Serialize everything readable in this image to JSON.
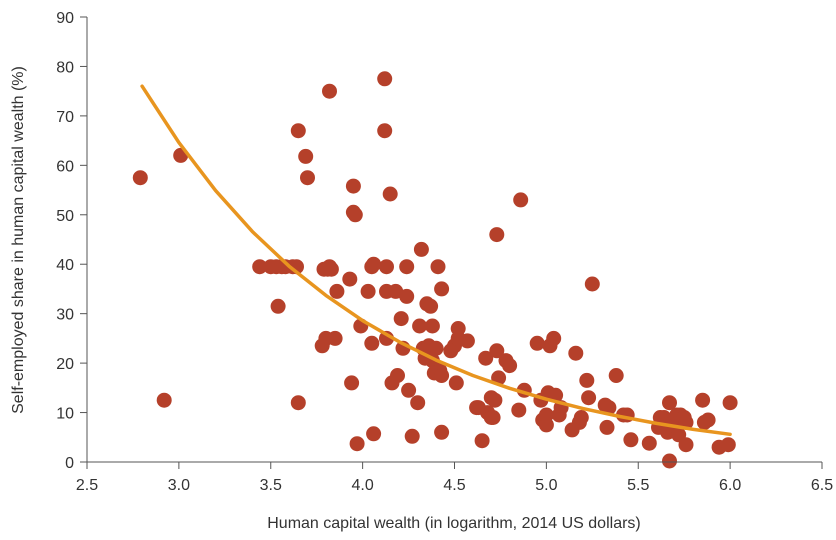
{
  "chart_data": {
    "type": "scatter",
    "xlabel": "Human capital wealth (in logarithm, 2014 US dollars)",
    "ylabel": "Self-employed share in human capital wealth (%)",
    "xlim": [
      2.5,
      6.5
    ],
    "ylim": [
      0,
      90
    ],
    "x_ticks": [
      2.5,
      3.0,
      3.5,
      4.0,
      4.5,
      5.0,
      5.5,
      6.0,
      6.5
    ],
    "x_tick_labels": [
      "2.5",
      "3.0",
      "3.5",
      "4.0",
      "4.5",
      "5.0",
      "5.5",
      "6.0",
      "6.5"
    ],
    "y_ticks": [
      0,
      10,
      20,
      30,
      40,
      50,
      60,
      70,
      80,
      90
    ],
    "y_tick_labels": [
      "0",
      "10",
      "20",
      "30",
      "40",
      "50",
      "60",
      "70",
      "80",
      "90"
    ],
    "grid": false,
    "point_color": "#b5402a",
    "trend_color": "#e8951f",
    "trend": {
      "type": "exponential",
      "x": [
        2.8,
        3.0,
        3.2,
        3.4,
        3.6,
        3.8,
        4.0,
        4.2,
        4.4,
        4.6,
        4.8,
        5.0,
        5.2,
        5.4,
        5.6,
        5.8,
        6.0
      ],
      "y": [
        76,
        64.6,
        54.9,
        46.6,
        39.6,
        33.7,
        28.6,
        24.3,
        20.6,
        17.5,
        14.9,
        12.7,
        10.8,
        9.2,
        7.8,
        6.6,
        5.6
      ]
    },
    "series": [
      {
        "points": [
          [
            2.79,
            57.5
          ],
          [
            2.92,
            12.5
          ],
          [
            3.01,
            62.0
          ],
          [
            3.44,
            39.5
          ],
          [
            3.5,
            39.5
          ],
          [
            3.53,
            39.5
          ],
          [
            3.54,
            31.5
          ],
          [
            3.56,
            39.5
          ],
          [
            3.58,
            39.5
          ],
          [
            3.62,
            39.5
          ],
          [
            3.64,
            39.5
          ],
          [
            3.65,
            67.0
          ],
          [
            3.65,
            12.0
          ],
          [
            3.69,
            61.8
          ],
          [
            3.7,
            57.5
          ],
          [
            3.78,
            23.5
          ],
          [
            3.79,
            39.0
          ],
          [
            3.8,
            25.0
          ],
          [
            3.81,
            39.0
          ],
          [
            3.82,
            75.0
          ],
          [
            3.82,
            39.5
          ],
          [
            3.83,
            39.0
          ],
          [
            3.85,
            25.0
          ],
          [
            3.86,
            34.5
          ],
          [
            3.93,
            37.0
          ],
          [
            3.94,
            16.0
          ],
          [
            3.95,
            55.8
          ],
          [
            3.95,
            50.5
          ],
          [
            3.96,
            50.0
          ],
          [
            3.97,
            3.7
          ],
          [
            3.99,
            27.5
          ],
          [
            4.03,
            34.5
          ],
          [
            4.05,
            39.5
          ],
          [
            4.05,
            24.0
          ],
          [
            4.06,
            40.0
          ],
          [
            4.06,
            5.7
          ],
          [
            4.12,
            77.5
          ],
          [
            4.12,
            67.0
          ],
          [
            4.13,
            34.5
          ],
          [
            4.13,
            39.5
          ],
          [
            4.13,
            25.0
          ],
          [
            4.15,
            54.2
          ],
          [
            4.16,
            16.0
          ],
          [
            4.18,
            34.5
          ],
          [
            4.19,
            17.5
          ],
          [
            4.21,
            29.0
          ],
          [
            4.22,
            23.0
          ],
          [
            4.24,
            39.5
          ],
          [
            4.24,
            33.5
          ],
          [
            4.25,
            14.5
          ],
          [
            4.27,
            5.2
          ],
          [
            4.3,
            12.0
          ],
          [
            4.31,
            27.5
          ],
          [
            4.32,
            43.0
          ],
          [
            4.33,
            23.0
          ],
          [
            4.34,
            21.0
          ],
          [
            4.35,
            32.0
          ],
          [
            4.36,
            23.5
          ],
          [
            4.37,
            31.5
          ],
          [
            4.38,
            27.5
          ],
          [
            4.38,
            20.5
          ],
          [
            4.39,
            18.0
          ],
          [
            4.4,
            23.0
          ],
          [
            4.41,
            39.5
          ],
          [
            4.42,
            18.5
          ],
          [
            4.43,
            35.0
          ],
          [
            4.43,
            17.5
          ],
          [
            4.43,
            6.0
          ],
          [
            4.48,
            22.5
          ],
          [
            4.5,
            23.5
          ],
          [
            4.51,
            16.0
          ],
          [
            4.52,
            27.0
          ],
          [
            4.52,
            25.0
          ],
          [
            4.57,
            24.5
          ],
          [
            4.62,
            11.0
          ],
          [
            4.63,
            11.0
          ],
          [
            4.65,
            4.3
          ],
          [
            4.67,
            21.0
          ],
          [
            4.68,
            10.0
          ],
          [
            4.7,
            13.0
          ],
          [
            4.7,
            9.0
          ],
          [
            4.71,
            9.0
          ],
          [
            4.72,
            12.5
          ],
          [
            4.73,
            22.5
          ],
          [
            4.73,
            46.0
          ],
          [
            4.74,
            17.0
          ],
          [
            4.78,
            20.5
          ],
          [
            4.8,
            19.5
          ],
          [
            4.85,
            10.5
          ],
          [
            4.86,
            53.0
          ],
          [
            4.88,
            14.5
          ],
          [
            4.95,
            24.0
          ],
          [
            4.97,
            12.5
          ],
          [
            4.98,
            8.5
          ],
          [
            5.0,
            7.5
          ],
          [
            5.0,
            9.5
          ],
          [
            5.01,
            14.0
          ],
          [
            5.02,
            23.5
          ],
          [
            5.04,
            25.0
          ],
          [
            5.05,
            13.5
          ],
          [
            5.07,
            9.5
          ],
          [
            5.08,
            11.0
          ],
          [
            5.14,
            6.5
          ],
          [
            5.16,
            22.0
          ],
          [
            5.18,
            8.0
          ],
          [
            5.19,
            9.0
          ],
          [
            5.22,
            16.5
          ],
          [
            5.23,
            13.0
          ],
          [
            5.25,
            36.0
          ],
          [
            5.32,
            11.5
          ],
          [
            5.33,
            7.0
          ],
          [
            5.34,
            11.0
          ],
          [
            5.38,
            17.5
          ],
          [
            5.42,
            9.5
          ],
          [
            5.44,
            9.5
          ],
          [
            5.46,
            4.5
          ],
          [
            5.56,
            3.8
          ],
          [
            5.61,
            7.0
          ],
          [
            5.62,
            9.0
          ],
          [
            5.64,
            9.0
          ],
          [
            5.65,
            7.5
          ],
          [
            5.66,
            6.0
          ],
          [
            5.67,
            0.2
          ],
          [
            5.67,
            12.0
          ],
          [
            5.68,
            7.5
          ],
          [
            5.7,
            8.0
          ],
          [
            5.71,
            9.5
          ],
          [
            5.72,
            5.5
          ],
          [
            5.73,
            9.5
          ],
          [
            5.75,
            9.0
          ],
          [
            5.76,
            3.5
          ],
          [
            5.76,
            8.0
          ],
          [
            5.85,
            12.5
          ],
          [
            5.86,
            8.0
          ],
          [
            5.88,
            8.5
          ],
          [
            5.94,
            3.0
          ],
          [
            5.99,
            3.5
          ],
          [
            6.0,
            12.0
          ]
        ]
      }
    ]
  }
}
